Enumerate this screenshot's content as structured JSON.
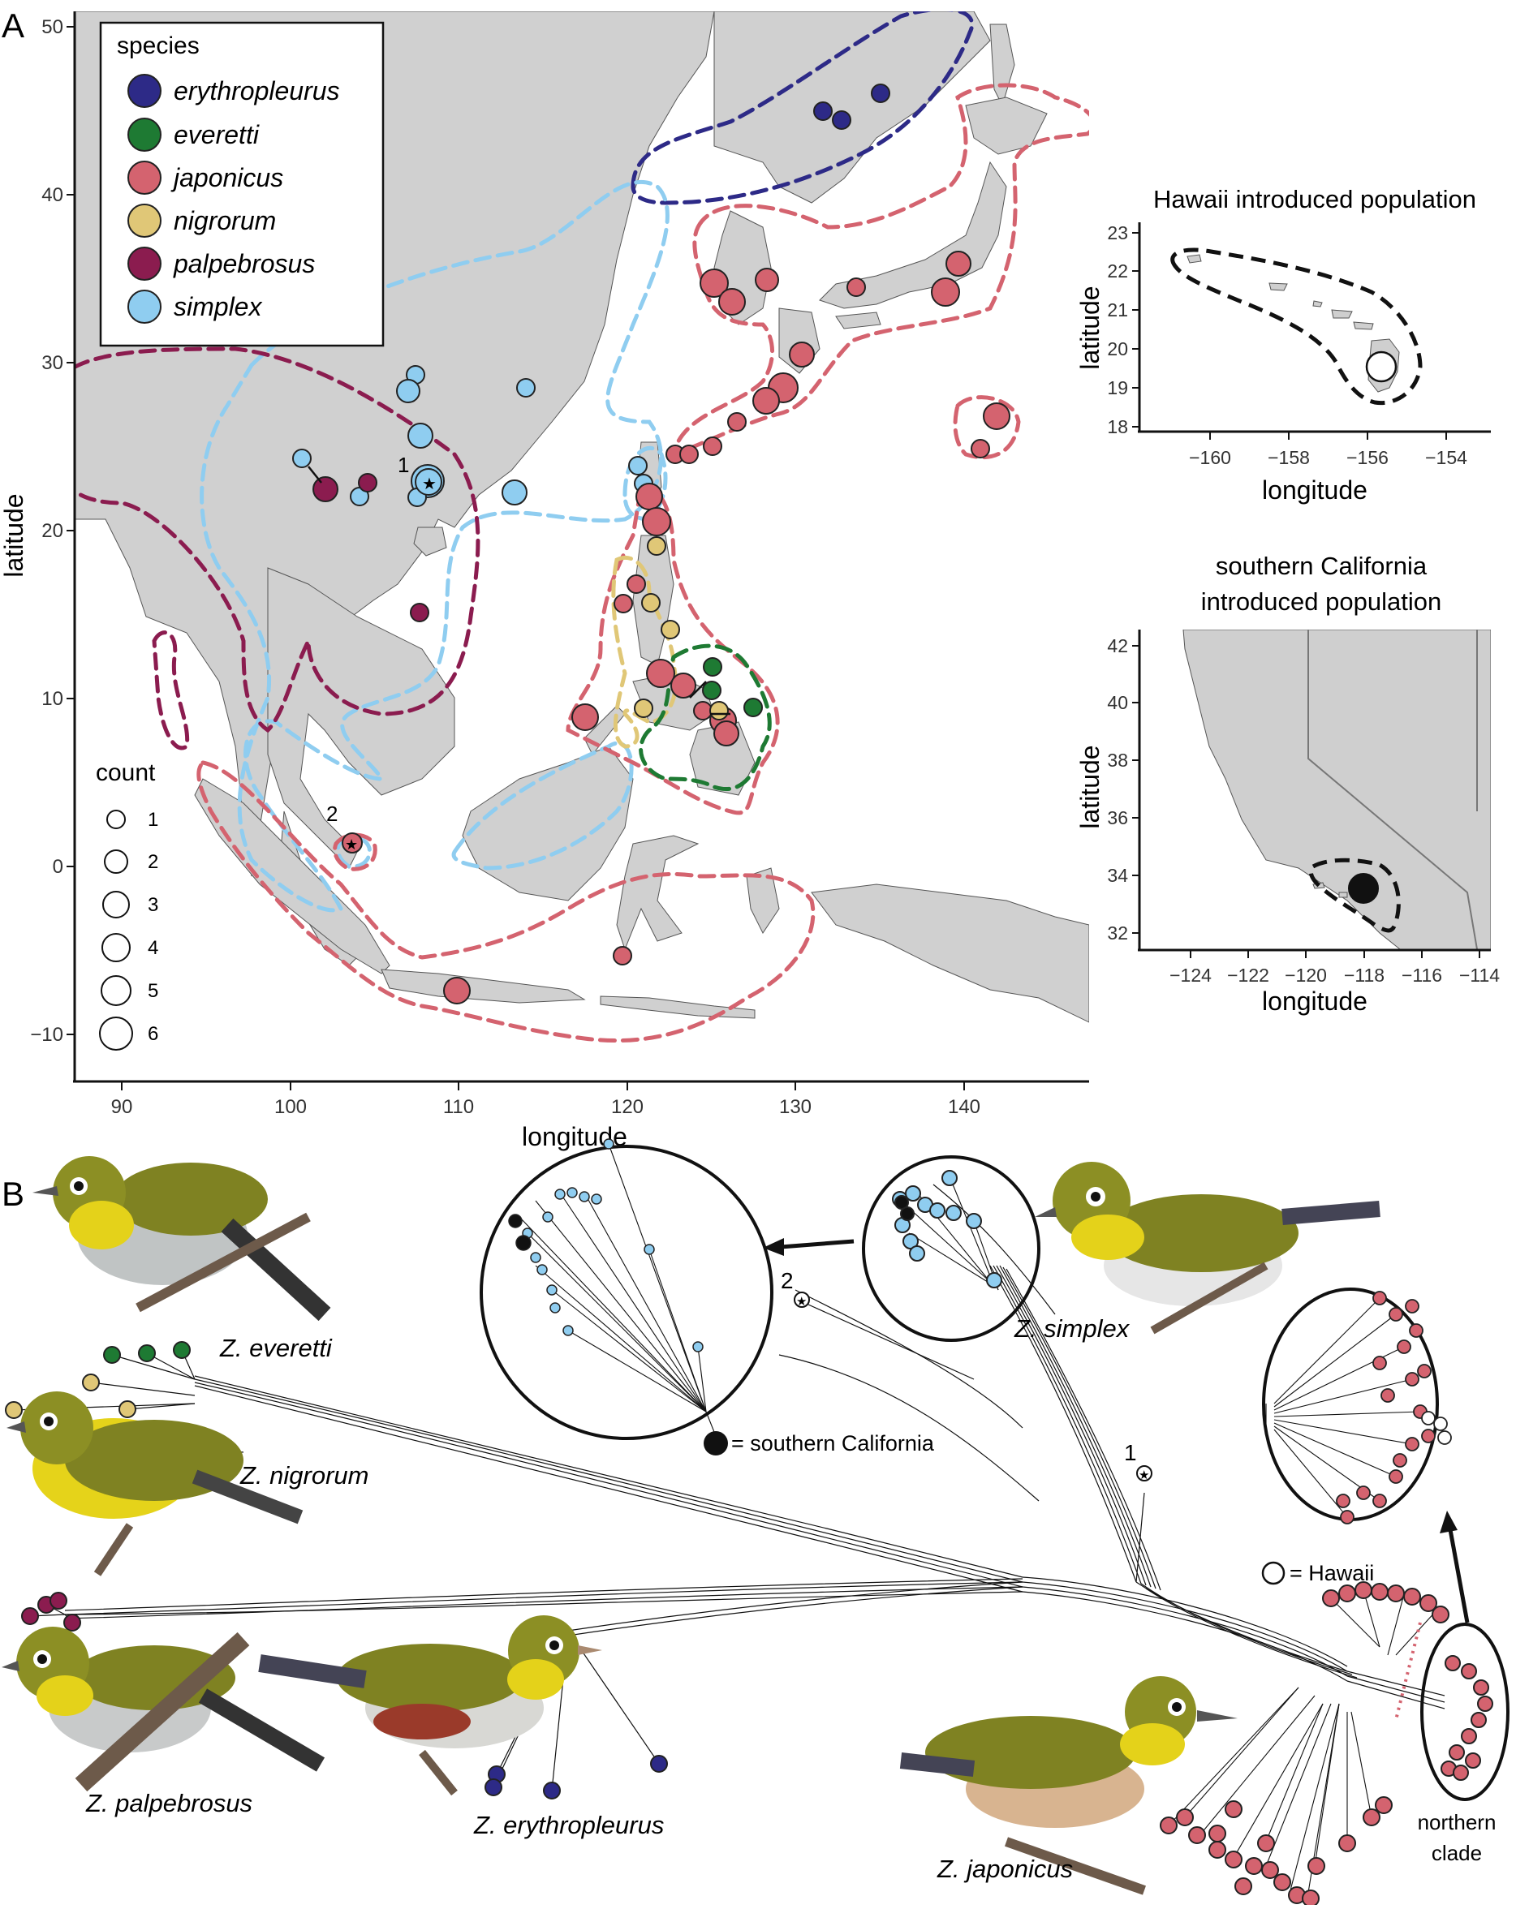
{
  "panels": {
    "a": "A",
    "b": "B"
  },
  "map": {
    "x_ticks": [
      "90",
      "100",
      "110",
      "120",
      "130",
      "140"
    ],
    "y_ticks": [
      "50",
      "40",
      "30",
      "20",
      "10",
      "0",
      "−10"
    ],
    "xlabel": "longitude",
    "ylabel": "latitude",
    "site_labels": [
      "1",
      "2"
    ]
  },
  "legend": {
    "title": "species",
    "items": [
      {
        "name": "erythropleurus",
        "color": "#2d2a87"
      },
      {
        "name": "everetti",
        "color": "#1e7a33"
      },
      {
        "name": "japonicus",
        "color": "#d4636f"
      },
      {
        "name": "nigrorum",
        "color": "#e0c777"
      },
      {
        "name": "palpebrosus",
        "color": "#8b1c4f"
      },
      {
        "name": "simplex",
        "color": "#8fcdf0"
      }
    ]
  },
  "count_legend": {
    "title": "count",
    "values": [
      "1",
      "2",
      "3",
      "4",
      "5",
      "6"
    ]
  },
  "inset_hawaii": {
    "title": "Hawaii introduced population",
    "x_ticks": [
      "−160",
      "−158",
      "−156",
      "−154"
    ],
    "y_ticks": [
      "23",
      "22",
      "21",
      "20",
      "19",
      "18"
    ],
    "xlabel": "longitude",
    "ylabel": "latitude"
  },
  "inset_california": {
    "title_line1": "southern California",
    "title_line2": "introduced population",
    "x_ticks": [
      "−124",
      "−122",
      "−120",
      "−118",
      "−116",
      "−114"
    ],
    "y_ticks": [
      "42",
      "40",
      "38",
      "36",
      "34",
      "32"
    ],
    "xlabel": "longitude",
    "ylabel": "latitude"
  },
  "network": {
    "species_labels": [
      {
        "text": "Z. everetti"
      },
      {
        "text": "Z. nigrorum"
      },
      {
        "text": "Z. palpebrosus"
      },
      {
        "text": "Z. erythropleurus"
      },
      {
        "text": "Z. simplex"
      },
      {
        "text": "Z. japonicus"
      }
    ],
    "callout_sc": "= southern California",
    "callout_hawaii": "= Hawaii",
    "clade_line1": "northern",
    "clade_line2": "clade",
    "tip_labels": [
      "1",
      "2"
    ]
  },
  "colors": {
    "land": "#d0d0d0",
    "erythropleurus": "#2d2a87",
    "everetti": "#1e7a33",
    "japonicus": "#d4636f",
    "nigrorum": "#e0c777",
    "palpebrosus": "#8b1c4f",
    "simplex": "#8fcdf0"
  }
}
